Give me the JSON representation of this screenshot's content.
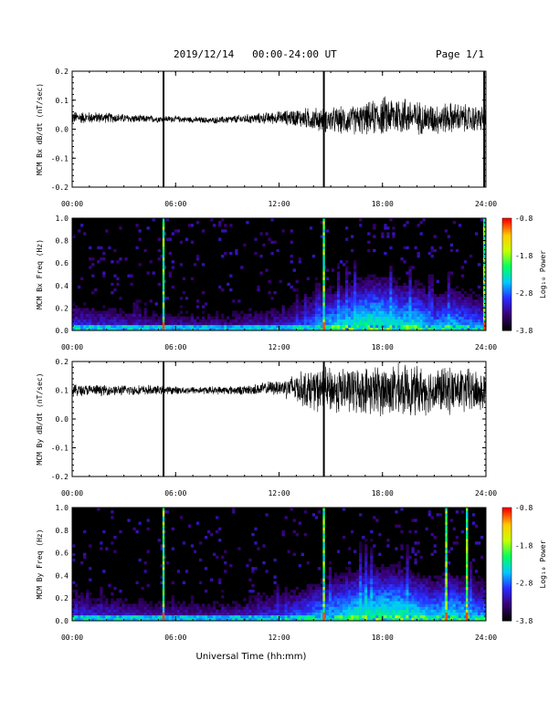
{
  "header": {
    "title": "2019/12/14   00:00-24:00 UT",
    "page": "Page 1/1"
  },
  "xaxis_title": "Universal Time (hh:mm)",
  "colorbar": {
    "label": "Log₁₀ Power",
    "tick_labels": [
      "-0.8",
      "-1.8",
      "-2.8",
      "-3.8"
    ],
    "range": [
      -3.8,
      -0.8
    ],
    "colormap": [
      "#000000",
      "#3a0078",
      "#2a2aff",
      "#00c8ff",
      "#00ff60",
      "#c8ff00",
      "#ffcc00",
      "#ff0000"
    ]
  },
  "chart_data": [
    {
      "type": "line",
      "name": "mcm-bx-dbdt",
      "ylabel": "MCM Bx dB/dt (nT/sec)",
      "ylim": [
        -0.2,
        0.2
      ],
      "y_ticks": [
        "0.2",
        "0.1",
        "0.0",
        "-0.1",
        "-0.2"
      ],
      "xlim": [
        0,
        24
      ],
      "x_ticks": [
        "00:00",
        "06:00",
        "12:00",
        "18:00",
        "24:00"
      ],
      "vertical_spikes_hours": [
        5.3,
        14.6,
        23.9
      ],
      "envelope": {
        "hours": [
          0,
          2,
          4,
          6,
          8,
          10,
          12,
          13,
          14,
          15,
          16,
          17,
          18,
          19,
          20,
          21,
          22,
          23,
          24
        ],
        "center": [
          0.04,
          0.04,
          0.035,
          0.035,
          0.03,
          0.035,
          0.04,
          0.04,
          0.035,
          0.03,
          0.03,
          0.035,
          0.045,
          0.05,
          0.04,
          0.035,
          0.04,
          0.035,
          0.035
        ],
        "amplitude": [
          0.025,
          0.02,
          0.015,
          0.012,
          0.012,
          0.018,
          0.025,
          0.035,
          0.045,
          0.05,
          0.055,
          0.06,
          0.075,
          0.08,
          0.065,
          0.06,
          0.06,
          0.055,
          0.05
        ]
      }
    },
    {
      "type": "heatmap",
      "name": "mcm-bx-spectrogram",
      "ylabel": "MCM Bx Freq (Hz)",
      "ylim": [
        0.0,
        1.0
      ],
      "y_ticks": [
        "1.0",
        "0.8",
        "0.6",
        "0.4",
        "0.2",
        "0.0"
      ],
      "xlim": [
        0,
        24
      ],
      "x_ticks": [
        "00:00",
        "06:00",
        "12:00",
        "18:00",
        "24:00"
      ],
      "spike_hours": [
        5.3,
        14.6,
        23.9
      ],
      "activity": {
        "hours": [
          0,
          3,
          6,
          9,
          12,
          13,
          15,
          16,
          17,
          18,
          19,
          20,
          21,
          22,
          23,
          24
        ],
        "extent": [
          0.3,
          0.25,
          0.2,
          0.2,
          0.25,
          0.3,
          0.45,
          0.5,
          0.55,
          0.55,
          0.5,
          0.5,
          0.4,
          0.45,
          0.4,
          0.35
        ]
      }
    },
    {
      "type": "line",
      "name": "mcm-by-dbdt",
      "ylabel": "MCM By dB/dt (nT/sec)",
      "ylim": [
        -0.2,
        0.2
      ],
      "y_ticks": [
        "0.2",
        "0.1",
        "0.0",
        "-0.1",
        "-0.2"
      ],
      "xlim": [
        0,
        24
      ],
      "x_ticks": [
        "00:00",
        "06:00",
        "12:00",
        "18:00",
        "24:00"
      ],
      "vertical_spikes_hours": [
        5.3,
        14.6
      ],
      "envelope": {
        "hours": [
          0,
          2,
          4,
          6,
          8,
          10,
          12,
          13,
          14,
          15,
          16,
          17,
          18,
          19,
          20,
          21,
          22,
          23,
          24
        ],
        "center": [
          0.1,
          0.1,
          0.1,
          0.1,
          0.1,
          0.1,
          0.11,
          0.11,
          0.1,
          0.1,
          0.1,
          0.1,
          0.1,
          0.1,
          0.1,
          0.1,
          0.1,
          0.1,
          0.09
        ],
        "amplitude": [
          0.025,
          0.02,
          0.02,
          0.015,
          0.015,
          0.018,
          0.03,
          0.06,
          0.08,
          0.09,
          0.09,
          0.09,
          0.1,
          0.1,
          0.095,
          0.09,
          0.09,
          0.09,
          0.08
        ]
      }
    },
    {
      "type": "heatmap",
      "name": "mcm-by-spectrogram",
      "ylabel": "MCM By Freq (Hz)",
      "ylim": [
        0.0,
        1.0
      ],
      "y_ticks": [
        "1.0",
        "0.8",
        "0.6",
        "0.4",
        "0.2",
        "0.0"
      ],
      "xlim": [
        0,
        24
      ],
      "x_ticks": [
        "00:00",
        "06:00",
        "12:00",
        "18:00",
        "24:00"
      ],
      "spike_hours": [
        5.3,
        14.6,
        21.7,
        22.9
      ],
      "activity": {
        "hours": [
          0,
          3,
          6,
          9,
          12,
          13,
          15,
          16,
          17,
          18,
          19,
          20,
          21,
          22,
          23,
          24
        ],
        "extent": [
          0.3,
          0.25,
          0.22,
          0.22,
          0.3,
          0.35,
          0.45,
          0.5,
          0.55,
          0.55,
          0.55,
          0.5,
          0.45,
          0.5,
          0.45,
          0.4
        ]
      }
    }
  ]
}
